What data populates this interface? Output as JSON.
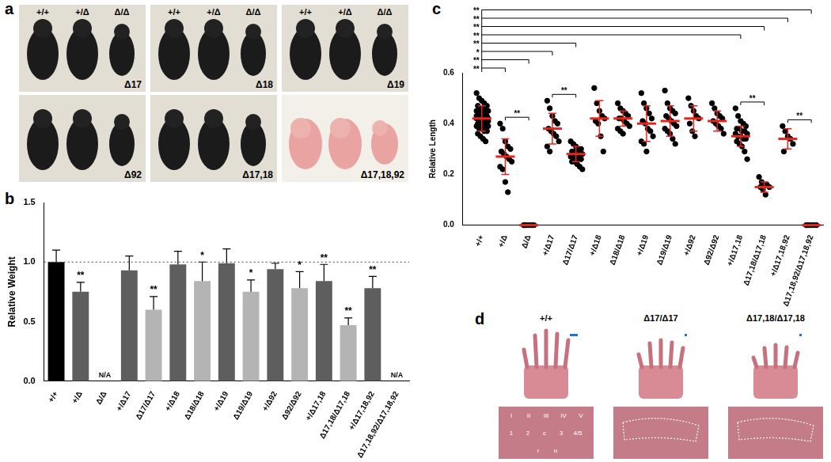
{
  "panel_labels": [
    "a",
    "b",
    "c",
    "d"
  ],
  "photos_a": {
    "genotypes": [
      "+/+",
      "+/Δ",
      "Δ/Δ"
    ],
    "alleles": [
      "Δ17",
      "Δ18",
      "Δ19",
      "Δ92",
      "Δ17,18",
      "Δ17,18,92"
    ]
  },
  "photos_d": {
    "genotypes": [
      "+/+",
      "Δ17/Δ17",
      "Δ17,18/Δ17,18"
    ],
    "digits": [
      "I",
      "II",
      "III",
      "IV",
      "V"
    ],
    "bones": [
      "1",
      "2",
      "c",
      "3",
      "4/5"
    ],
    "forearm": [
      "r",
      "u"
    ]
  },
  "chart_data": [
    {
      "type": "bar",
      "categories": [
        "+/+",
        "+/Δ",
        "Δ/Δ",
        "+/Δ17",
        "Δ17/Δ17",
        "+/Δ18",
        "Δ18/Δ18",
        "+/Δ19",
        "Δ19/Δ19",
        "+/Δ92",
        "Δ92/Δ92",
        "+/Δ17,18",
        "Δ17,18/Δ17,18",
        "+/Δ17,18,92",
        "Δ17,18,92/Δ17,18,92"
      ],
      "values": [
        1.0,
        0.75,
        null,
        0.93,
        0.6,
        0.98,
        0.84,
        0.99,
        0.75,
        0.94,
        0.78,
        0.84,
        0.47,
        0.78,
        null
      ],
      "errors": [
        0.1,
        0.08,
        null,
        0.12,
        0.11,
        0.11,
        0.16,
        0.12,
        0.1,
        0.05,
        0.14,
        0.14,
        0.06,
        0.1,
        null
      ],
      "colors": [
        "#000000",
        "#5e5e5e",
        "#5e5e5e",
        "#5e5e5e",
        "#b4b4b4",
        "#5e5e5e",
        "#b4b4b4",
        "#5e5e5e",
        "#b4b4b4",
        "#5e5e5e",
        "#b4b4b4",
        "#5e5e5e",
        "#b4b4b4",
        "#5e5e5e",
        "#b4b4b4"
      ],
      "ylabel": "Relative Weight",
      "ylim": [
        0,
        1.5
      ],
      "yticks": [
        {
          "value": 0,
          "label": "0.0"
        },
        0.5,
        {
          "value": 1,
          "label": "1.0"
        },
        1.5
      ],
      "reference_line": 1,
      "grid": false,
      "annotations": [
        {
          "category": "+/Δ",
          "text": "**"
        },
        {
          "category": "Δ/Δ",
          "text": "N/A"
        },
        {
          "category": "Δ17/Δ17",
          "text": "**"
        },
        {
          "category": "Δ18/Δ18",
          "text": "*"
        },
        {
          "category": "Δ19/Δ19",
          "text": "*"
        },
        {
          "category": "Δ92/Δ92",
          "text": "*"
        },
        {
          "category": "+/Δ17,18",
          "text": "**"
        },
        {
          "category": "Δ17,18/Δ17,18",
          "text": "**"
        },
        {
          "category": "+/Δ17,18,92",
          "text": "**"
        },
        {
          "category": "Δ17,18,92/Δ17,18,92",
          "text": "N/A"
        }
      ]
    },
    {
      "type": "scatter",
      "categories": [
        "+/+",
        "+/Δ",
        "Δ/Δ",
        "+/Δ17",
        "Δ17/Δ17",
        "+/Δ18",
        "Δ18/Δ18",
        "+/Δ19",
        "Δ19/Δ19",
        "+/Δ92",
        "Δ92/Δ92",
        "+/Δ17,18",
        "Δ17,18/Δ17,18",
        "+/Δ17,18,92",
        "Δ17,18,92/Δ17,18,92"
      ],
      "points": [
        [
          0.52,
          0.5,
          0.49,
          0.48,
          0.47,
          0.47,
          0.46,
          0.46,
          0.45,
          0.45,
          0.45,
          0.44,
          0.44,
          0.44,
          0.43,
          0.43,
          0.43,
          0.43,
          0.42,
          0.42,
          0.42,
          0.42,
          0.41,
          0.41,
          0.41,
          0.4,
          0.4,
          0.4,
          0.39,
          0.39,
          0.39,
          0.38,
          0.38,
          0.37,
          0.37,
          0.36,
          0.35,
          0.34,
          0.33,
          0.41,
          0.43,
          0.44
        ],
        [
          0.4,
          0.38,
          0.33,
          0.31,
          0.3,
          0.29,
          0.28,
          0.27,
          0.26,
          0.25,
          0.23,
          0.22,
          0.17,
          0.13
        ],
        [
          0,
          0,
          0,
          0,
          0,
          0
        ],
        [
          0.49,
          0.46,
          0.43,
          0.41,
          0.4,
          0.38,
          0.37,
          0.36,
          0.35,
          0.33,
          0.31,
          0.29
        ],
        [
          0.33,
          0.32,
          0.31,
          0.3,
          0.3,
          0.29,
          0.29,
          0.28,
          0.28,
          0.28,
          0.27,
          0.27,
          0.27,
          0.26,
          0.26,
          0.25,
          0.25,
          0.24,
          0.23,
          0.22
        ],
        [
          0.54,
          0.48,
          0.45,
          0.43,
          0.42,
          0.41,
          0.4,
          0.35,
          0.29
        ],
        [
          0.48,
          0.46,
          0.45,
          0.44,
          0.43,
          0.42,
          0.42,
          0.41,
          0.4,
          0.39,
          0.38,
          0.37,
          0.36
        ],
        [
          0.52,
          0.48,
          0.46,
          0.44,
          0.42,
          0.41,
          0.4,
          0.38,
          0.37,
          0.35,
          0.33,
          0.32,
          0.29
        ],
        [
          0.53,
          0.48,
          0.46,
          0.45,
          0.44,
          0.43,
          0.42,
          0.41,
          0.4,
          0.39,
          0.38,
          0.37,
          0.36,
          0.34,
          0.32
        ],
        [
          0.5,
          0.47,
          0.45,
          0.43,
          0.42,
          0.4,
          0.37,
          0.35
        ],
        [
          0.48,
          0.46,
          0.44,
          0.43,
          0.42,
          0.41,
          0.4,
          0.39,
          0.38,
          0.36
        ],
        [
          0.46,
          0.43,
          0.41,
          0.4,
          0.39,
          0.38,
          0.38,
          0.37,
          0.37,
          0.36,
          0.36,
          0.35,
          0.35,
          0.34,
          0.34,
          0.33,
          0.32,
          0.31,
          0.29,
          0.26
        ],
        [
          0.19,
          0.17,
          0.16,
          0.16,
          0.15,
          0.15,
          0.14,
          0.12
        ],
        [
          0.39,
          0.37,
          0.35,
          0.34,
          0.32,
          0.29
        ],
        [
          0,
          0,
          0,
          0,
          0,
          0
        ]
      ],
      "mean": [
        0.42,
        0.27,
        0,
        0.38,
        0.28,
        0.42,
        0.42,
        0.4,
        0.41,
        0.42,
        0.41,
        0.35,
        0.15,
        0.34,
        0
      ],
      "sd": [
        0.05,
        0.07,
        0,
        0.06,
        0.03,
        0.07,
        0.03,
        0.07,
        0.06,
        0.05,
        0.04,
        0.04,
        0.02,
        0.04,
        0
      ],
      "color": "#000000",
      "marker": "circle",
      "ylabel": "Relative Length",
      "ylim": [
        0,
        0.6
      ],
      "yticks": [
        {
          "value": 0,
          "label": "0.0"
        },
        0.2,
        0.4,
        0.6
      ],
      "grid": false,
      "comparisons": [
        {
          "from": "+/+",
          "to": "Δ17,18,92/Δ17,18,92",
          "text": "**"
        },
        {
          "from": "+/+",
          "to": "+/Δ17,18,92",
          "text": "**"
        },
        {
          "from": "+/+",
          "to": "Δ17,18/Δ17,18",
          "text": "**"
        },
        {
          "from": "+/+",
          "to": "+/Δ17,18",
          "text": "**"
        },
        {
          "from": "+/+",
          "to": "Δ17/Δ17",
          "text": "**"
        },
        {
          "from": "+/+",
          "to": "+/Δ17",
          "text": "*"
        },
        {
          "from": "+/+",
          "to": "Δ/Δ",
          "text": "**"
        },
        {
          "from": "+/+",
          "to": "+/Δ",
          "text": "**"
        },
        {
          "from": "+/Δ",
          "to": "Δ/Δ",
          "text": "**"
        },
        {
          "from": "+/Δ17",
          "to": "Δ17/Δ17",
          "text": "**"
        },
        {
          "from": "+/Δ17,18",
          "to": "Δ17,18/Δ17,18",
          "text": "**"
        },
        {
          "from": "+/Δ17,18,92",
          "to": "Δ17,18,92/Δ17,18,92",
          "text": "**"
        }
      ]
    }
  ]
}
